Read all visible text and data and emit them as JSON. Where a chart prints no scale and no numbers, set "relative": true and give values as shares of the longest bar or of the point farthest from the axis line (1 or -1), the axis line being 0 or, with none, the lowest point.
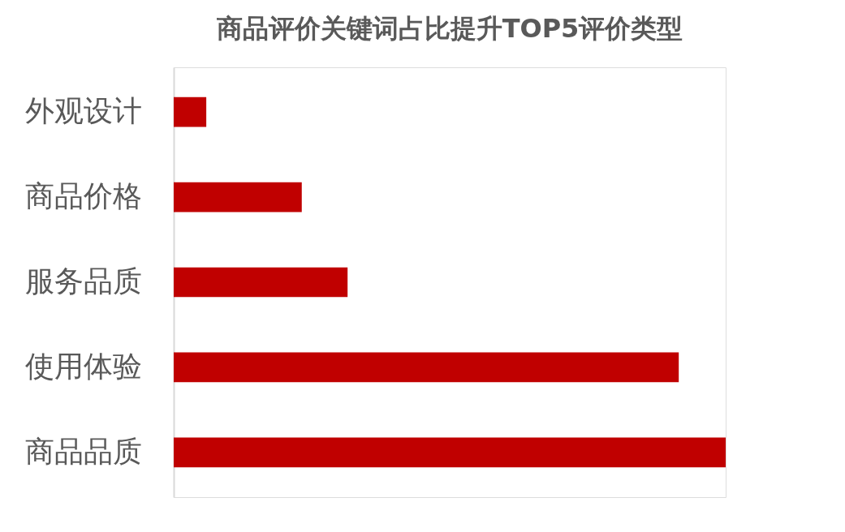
{
  "chart_data": {
    "type": "bar",
    "orientation": "horizontal",
    "relative": true,
    "title": "商品评价关键词占比提升TOP5评价类型",
    "categories": [
      "外观设计",
      "商品价格",
      "服务品质",
      "使用体验",
      "商品品质"
    ],
    "values": [
      0.059,
      0.232,
      0.315,
      0.915,
      1.0
    ],
    "color": "#c00000"
  }
}
